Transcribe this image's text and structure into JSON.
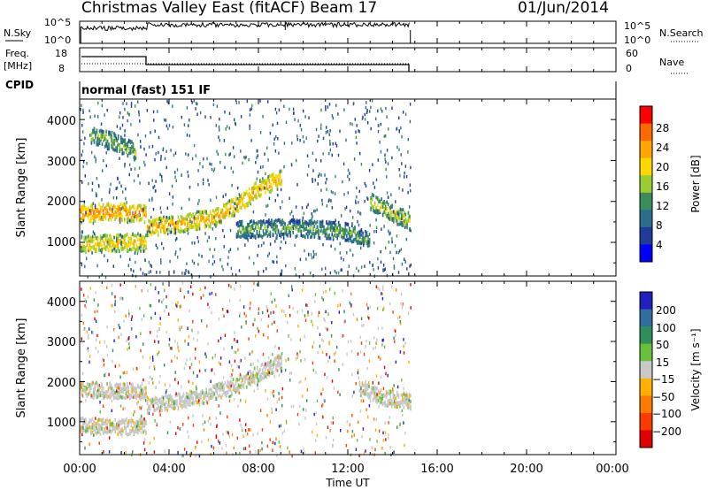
{
  "header": {
    "title": "Christmas Valley East (fitACF)",
    "beam": "Beam 17",
    "date": "01/Jun/2014"
  },
  "panels": {
    "nsky": {
      "label": "N.Sky",
      "left_ticks": [
        "10^5",
        "10^0"
      ],
      "right_ticks": [
        "10^5",
        "10^0"
      ],
      "right_label": "N.Search"
    },
    "freq": {
      "label_line1": "Freq.",
      "label_line2": "[MHz]",
      "left_ticks": [
        "18",
        "8"
      ],
      "right_ticks": [
        "60",
        "0"
      ],
      "right_label": "Nave"
    },
    "cpid": {
      "label": "CPID",
      "value": "normal (fast) 151 IF"
    }
  },
  "range_axis": {
    "label": "Slant Range [km]",
    "ticks": [
      "4000",
      "3000",
      "2000",
      "1000"
    ]
  },
  "colorbars": {
    "power": {
      "label": "Power [dB]",
      "ticks": [
        "28",
        "24",
        "20",
        "16",
        "12",
        "8",
        "4"
      ],
      "colors": [
        "#0000ff",
        "#1e3c9a",
        "#2a6e8c",
        "#3a8c5a",
        "#9acd32",
        "#ffd700",
        "#ffa500",
        "#ff6a00",
        "#ff0000"
      ]
    },
    "velocity": {
      "label": "Velocity [m s⁻¹]",
      "ticks": [
        "200",
        "100",
        "50",
        "15",
        "−15",
        "−50",
        "−100",
        "−200"
      ],
      "colors": [
        "#2020c0",
        "#2f6ea0",
        "#2f8f5a",
        "#66c03a",
        "#c8c8c8",
        "#ffb000",
        "#ff7a00",
        "#ff3a00",
        "#e00000"
      ]
    }
  },
  "time_axis": {
    "label": "Time UT",
    "ticks": [
      "00:00",
      "04:00",
      "08:00",
      "12:00",
      "16:00",
      "20:00",
      "00:00"
    ]
  },
  "chart_data": {
    "type": "heatmap",
    "x_range_hours": [
      0,
      24
    ],
    "y_range_km": [
      180,
      4500
    ],
    "data_end_hour": 14.8,
    "power_bands": [
      {
        "name": "band-a",
        "x": [
          0.0,
          1.5,
          2.5,
          3.0
        ],
        "y": [
          1700,
          1750,
          1700,
          1700
        ],
        "power": 26
      },
      {
        "name": "band-b",
        "x": [
          3.0,
          5.0,
          6.0,
          7.0,
          8.0,
          9.0
        ],
        "y": [
          1350,
          1500,
          1600,
          1900,
          2300,
          2550
        ],
        "power": 24
      },
      {
        "name": "band-c",
        "x": [
          0.0,
          2.5,
          3.0
        ],
        "y": [
          950,
          1000,
          1000
        ],
        "power": 22
      },
      {
        "name": "band-d",
        "x": [
          7.0,
          9.0,
          11.0,
          12.0,
          13.0
        ],
        "y": [
          1300,
          1350,
          1300,
          1250,
          1000
        ],
        "power": 14
      },
      {
        "name": "band-e",
        "x": [
          13.0,
          14.0,
          14.8
        ],
        "y": [
          2000,
          1700,
          1500
        ],
        "power": 18
      },
      {
        "name": "band-f",
        "x": [
          0.5,
          1.5,
          2.5
        ],
        "y": [
          3600,
          3450,
          3200
        ],
        "power": 16
      }
    ],
    "velocity_bands": [
      {
        "name": "vband-a",
        "x": [
          0.0,
          2.5,
          3.0
        ],
        "y": [
          1800,
          1750,
          1750
        ],
        "velocity": 0
      },
      {
        "name": "vband-b",
        "x": [
          3.0,
          5.0,
          7.0,
          9.0
        ],
        "y": [
          1400,
          1550,
          1900,
          2500
        ],
        "velocity": 0
      },
      {
        "name": "vband-c",
        "x": [
          12.5,
          13.5,
          14.8
        ],
        "y": [
          1800,
          1600,
          1500
        ],
        "velocity": 0
      },
      {
        "name": "vband-d",
        "x": [
          0.0,
          2.0,
          3.0
        ],
        "y": [
          900,
          850,
          900
        ],
        "velocity": 0
      }
    ]
  }
}
